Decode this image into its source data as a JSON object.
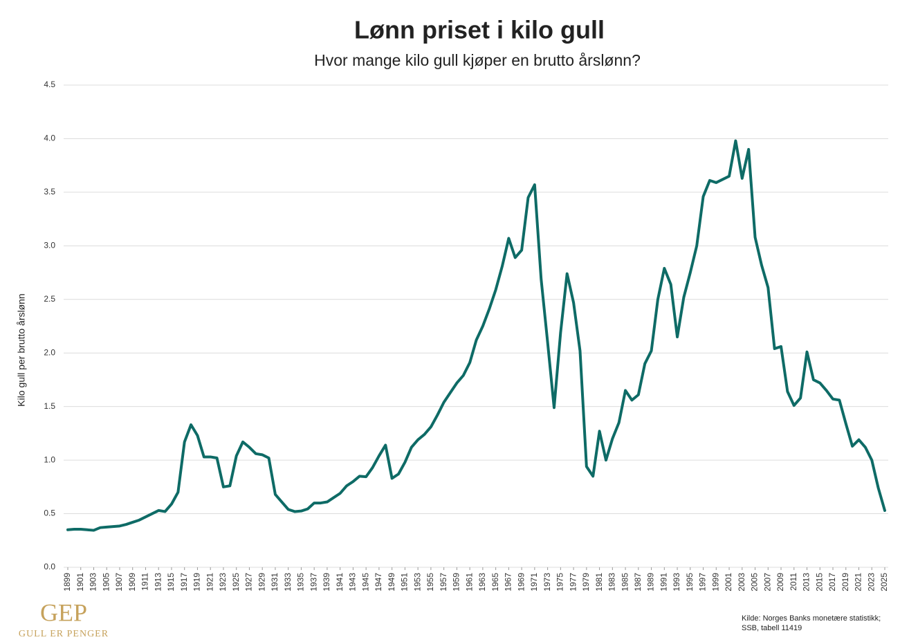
{
  "chart_data": {
    "type": "line",
    "title": "Lønn priset i kilo gull",
    "subtitle": "Hvor mange kilo gull kjøper en brutto årslønn?",
    "y_label": "Kilo gull per brutto årslønn",
    "source": [
      "Kilde: Norges Banks monetære statistikk;",
      "SSB, tabell 11419"
    ],
    "logo": {
      "mark": "GEP",
      "text": "GULL ER PENGER"
    },
    "color": "#0e6b66",
    "grid": true,
    "x": [
      1899,
      1900,
      1901,
      1902,
      1903,
      1904,
      1905,
      1906,
      1907,
      1908,
      1909,
      1910,
      1911,
      1912,
      1913,
      1914,
      1915,
      1916,
      1917,
      1918,
      1919,
      1920,
      1921,
      1922,
      1923,
      1924,
      1925,
      1926,
      1927,
      1928,
      1929,
      1930,
      1931,
      1932,
      1933,
      1934,
      1935,
      1936,
      1937,
      1938,
      1939,
      1940,
      1941,
      1942,
      1943,
      1944,
      1945,
      1946,
      1947,
      1948,
      1949,
      1950,
      1951,
      1952,
      1953,
      1954,
      1955,
      1956,
      1957,
      1958,
      1959,
      1960,
      1961,
      1962,
      1963,
      1964,
      1965,
      1966,
      1967,
      1968,
      1969,
      1970,
      1971,
      1972,
      1973,
      1974,
      1975,
      1976,
      1977,
      1978,
      1979,
      1980,
      1981,
      1982,
      1983,
      1984,
      1985,
      1986,
      1987,
      1988,
      1989,
      1990,
      1991,
      1992,
      1993,
      1994,
      1995,
      1996,
      1997,
      1998,
      1999,
      2000,
      2001,
      2002,
      2003,
      2004,
      2005,
      2006,
      2007,
      2008,
      2009,
      2010,
      2011,
      2012,
      2013,
      2014,
      2015,
      2016,
      2017,
      2018,
      2019,
      2020,
      2021,
      2022,
      2023,
      2024,
      2025
    ],
    "values": [
      0.35,
      0.355,
      0.355,
      0.35,
      0.345,
      0.37,
      0.375,
      0.38,
      0.385,
      0.4,
      0.42,
      0.44,
      0.47,
      0.5,
      0.53,
      0.52,
      0.59,
      0.7,
      1.17,
      1.33,
      1.23,
      1.03,
      1.03,
      1.02,
      0.75,
      0.76,
      1.04,
      1.17,
      1.12,
      1.06,
      1.05,
      1.02,
      0.68,
      0.61,
      0.54,
      0.52,
      0.525,
      0.545,
      0.6,
      0.6,
      0.61,
      0.65,
      0.69,
      0.76,
      0.8,
      0.85,
      0.845,
      0.93,
      1.04,
      1.14,
      0.83,
      0.87,
      0.98,
      1.12,
      1.19,
      1.24,
      1.31,
      1.42,
      1.54,
      1.63,
      1.72,
      1.79,
      1.91,
      2.12,
      2.25,
      2.41,
      2.59,
      2.81,
      3.07,
      2.89,
      2.96,
      3.45,
      3.57,
      2.69,
      2.1,
      1.49,
      2.19,
      2.74,
      2.47,
      2.02,
      0.94,
      0.85,
      1.27,
      1.0,
      1.2,
      1.35,
      1.65,
      1.56,
      1.61,
      1.9,
      2.02,
      2.5,
      2.79,
      2.64,
      2.15,
      2.52,
      2.75,
      3.0,
      3.46,
      3.61,
      3.59,
      3.62,
      3.65,
      3.98,
      3.63,
      3.9,
      3.08,
      2.82,
      2.61,
      2.04,
      2.06,
      1.64,
      1.51,
      1.58,
      2.01,
      1.75,
      1.72,
      1.65,
      1.57,
      1.56,
      1.34,
      1.13,
      1.19,
      1.12,
      1.0,
      0.74,
      0.53
    ],
    "xlim": [
      1899,
      2025
    ],
    "xticks": [
      1899,
      1901,
      1903,
      1905,
      1907,
      1909,
      1911,
      1913,
      1915,
      1917,
      1919,
      1921,
      1923,
      1925,
      1927,
      1929,
      1931,
      1933,
      1935,
      1937,
      1939,
      1941,
      1943,
      1945,
      1947,
      1949,
      1951,
      1953,
      1955,
      1957,
      1959,
      1961,
      1963,
      1965,
      1967,
      1969,
      1971,
      1973,
      1975,
      1977,
      1979,
      1981,
      1983,
      1985,
      1987,
      1989,
      1991,
      1993,
      1995,
      1997,
      1999,
      2001,
      2003,
      2005,
      2007,
      2009,
      2011,
      2013,
      2015,
      2017,
      2019,
      2021,
      2023,
      2025
    ],
    "ylim": [
      0,
      4.5
    ],
    "yticks": [
      {
        "value": 0,
        "label": "0.0"
      },
      0.5,
      {
        "value": 1,
        "label": "1.0"
      },
      1.5,
      {
        "value": 2,
        "label": "2.0"
      },
      2.5,
      {
        "value": 3,
        "label": "3.0"
      },
      3.5,
      {
        "value": 4,
        "label": "4.0"
      },
      4.5
    ]
  }
}
